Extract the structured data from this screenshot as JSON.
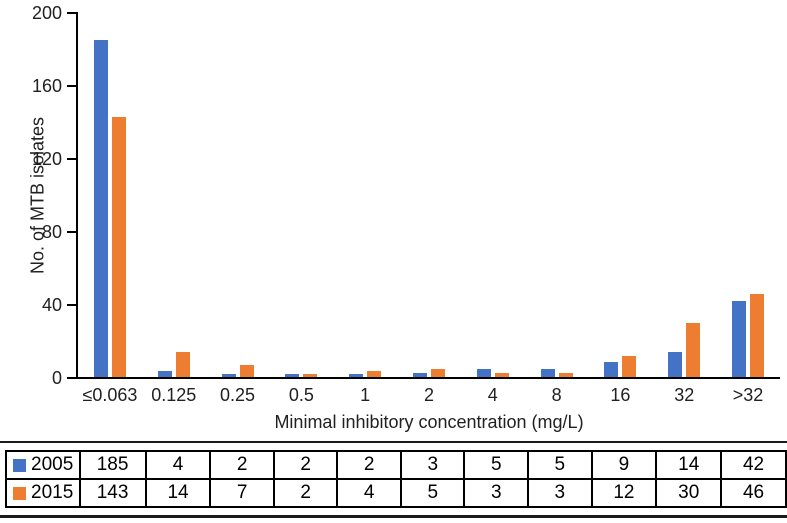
{
  "chart_data": {
    "type": "bar",
    "title": "",
    "categories": [
      "≤0.063",
      "0.125",
      "0.25",
      "0.5",
      "1",
      "2",
      "4",
      "8",
      "16",
      "32",
      ">32"
    ],
    "series": [
      {
        "name": "2005",
        "color": "#4472C4",
        "values": [
          185,
          4,
          2,
          2,
          2,
          3,
          5,
          5,
          9,
          14,
          42
        ]
      },
      {
        "name": "2015",
        "color": "#ED7D31",
        "values": [
          143,
          14,
          7,
          2,
          4,
          5,
          3,
          3,
          12,
          30,
          46
        ]
      }
    ],
    "xlabel": "Minimal inhibitory concentration (mg/L)",
    "ylabel": "No. of MTB isolates",
    "ylim": [
      0,
      200
    ],
    "yticks": [
      0,
      40,
      80,
      120,
      160,
      200
    ],
    "grid": false,
    "legend_position": "table-below-chart"
  },
  "table": {
    "rows": [
      {
        "label": "2005",
        "swatch_color": "#4472C4",
        "values": [
          "185",
          "4",
          "2",
          "2",
          "2",
          "3",
          "5",
          "5",
          "9",
          "14",
          "42"
        ]
      },
      {
        "label": "2015",
        "swatch_color": "#ED7D31",
        "values": [
          "143",
          "14",
          "7",
          "2",
          "4",
          "5",
          "3",
          "3",
          "12",
          "30",
          "46"
        ]
      }
    ]
  },
  "colors": {
    "series_2005": "#4472C4",
    "series_2015": "#ED7D31",
    "axis": "#000000",
    "text": "#212121"
  }
}
